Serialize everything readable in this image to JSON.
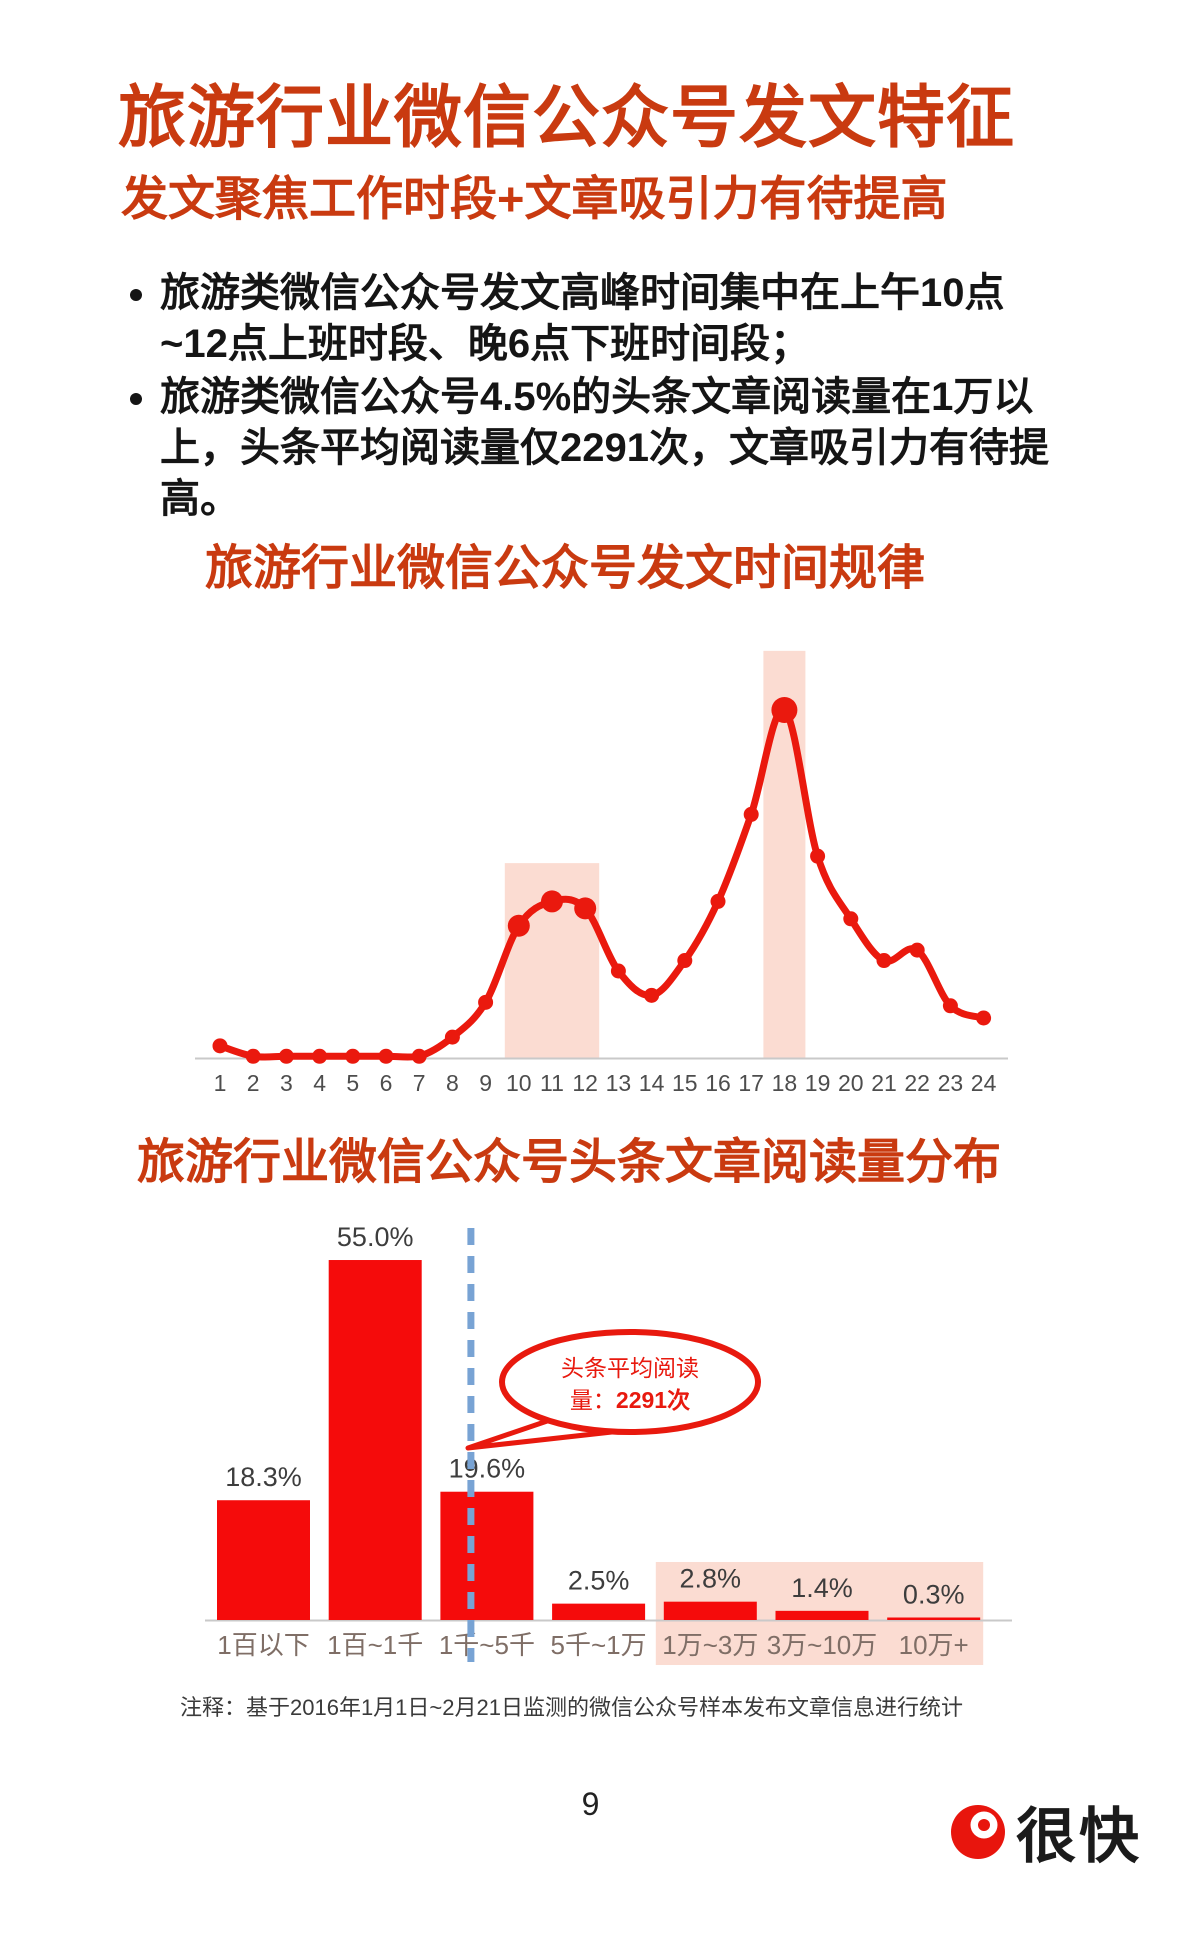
{
  "page": {
    "title": "旅游行业微信公众号发文特征",
    "subtitle": "发文聚焦工作时段+文章吸引力有待提高",
    "bullets": [
      "旅游类微信公众号发文高峰时间集中在上午10点~12点上班时段、晚6点下班时间段；",
      "旅游类微信公众号4.5%的头条文章阅读量在1万以上，头条平均阅读量仅2291次，文章吸引力有待提高。"
    ],
    "note": "注释：基于2016年1月1日~2月21日监测的微信公众号样本发布文章信息进行统计",
    "page_number": "9",
    "logo_text": "很快"
  },
  "colors": {
    "heading_red": "#c93a10",
    "line_red": "#ea190e",
    "bar_red": "#f50b0b",
    "band_pink": "#fbdcd2",
    "dashed_blue": "#78a3d4",
    "axis_gray": "#c9c9c9",
    "tick_gray": "#4d4d4d",
    "value_gray": "#3d3d3d",
    "category_brown": "#7f6e66",
    "callout_red": "#e8190e",
    "logo_red": "#e8150d"
  },
  "chart_data": [
    {
      "type": "line",
      "title": "旅游行业微信公众号发文时间规律",
      "x": [
        1,
        2,
        3,
        4,
        5,
        6,
        7,
        8,
        9,
        10,
        11,
        12,
        13,
        14,
        15,
        16,
        17,
        18,
        19,
        20,
        21,
        22,
        23,
        24
      ],
      "values": [
        3.5,
        0.5,
        0.5,
        0.5,
        0.5,
        0.5,
        0.5,
        6,
        16,
        38,
        45,
        43,
        25,
        18,
        28,
        45,
        70,
        100,
        58,
        40,
        28,
        31,
        15,
        11.5
      ],
      "ylim": [
        0,
        126
      ],
      "grid": false,
      "legend": null,
      "emphasized_points": [
        10,
        11,
        12,
        18
      ],
      "highlight_bands": [
        {
          "from": 10,
          "to": 12,
          "top": 56
        },
        {
          "from": 18,
          "to": 18,
          "top": 117
        }
      ]
    },
    {
      "type": "bar",
      "title": "旅游行业微信公众号头条文章阅读量分布",
      "categories": [
        "1百以下",
        "1百~1千",
        "1千~5千",
        "5千~1万",
        "1万~3万",
        "3万~10万",
        "10万+"
      ],
      "values": [
        18.3,
        55.0,
        19.6,
        2.5,
        2.8,
        1.4,
        0.3
      ],
      "value_labels": [
        "18.3%",
        "55.0%",
        "19.6%",
        "2.5%",
        "2.8%",
        "1.4%",
        "0.3%"
      ],
      "ylim": [
        0,
        62
      ],
      "grid": false,
      "highlight_box": {
        "from_index": 4,
        "to_index": 6
      },
      "avg_annotation": {
        "line1": "头条平均阅读",
        "line2_label": "量：",
        "line2_value": "2291次",
        "anchor_category_index": 2
      }
    }
  ]
}
